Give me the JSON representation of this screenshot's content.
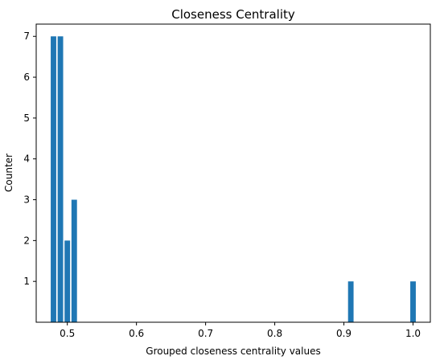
{
  "chart_data": {
    "type": "bar",
    "title": "Closeness Centrality",
    "xlabel": "Grouped closeness centrality values",
    "ylabel": "Counter",
    "bars": [
      {
        "x": 0.48,
        "value": 7
      },
      {
        "x": 0.49,
        "value": 7
      },
      {
        "x": 0.5,
        "value": 2
      },
      {
        "x": 0.51,
        "value": 3
      },
      {
        "x": 0.91,
        "value": 1
      },
      {
        "x": 1.0,
        "value": 1
      }
    ],
    "bar_width": 0.008,
    "xlim": [
      0.455,
      1.025
    ],
    "ylim": [
      0,
      7.3
    ],
    "xticks": [
      0.5,
      0.6,
      0.7,
      0.8,
      0.9,
      1.0
    ],
    "xtick_labels": [
      "0.5",
      "0.6",
      "0.7",
      "0.8",
      "0.9",
      "1.0"
    ],
    "yticks": [
      1,
      2,
      3,
      4,
      5,
      6,
      7
    ],
    "ytick_labels": [
      "1",
      "2",
      "3",
      "4",
      "5",
      "6",
      "7"
    ],
    "grid": false,
    "bar_color": "#1f77b4"
  }
}
